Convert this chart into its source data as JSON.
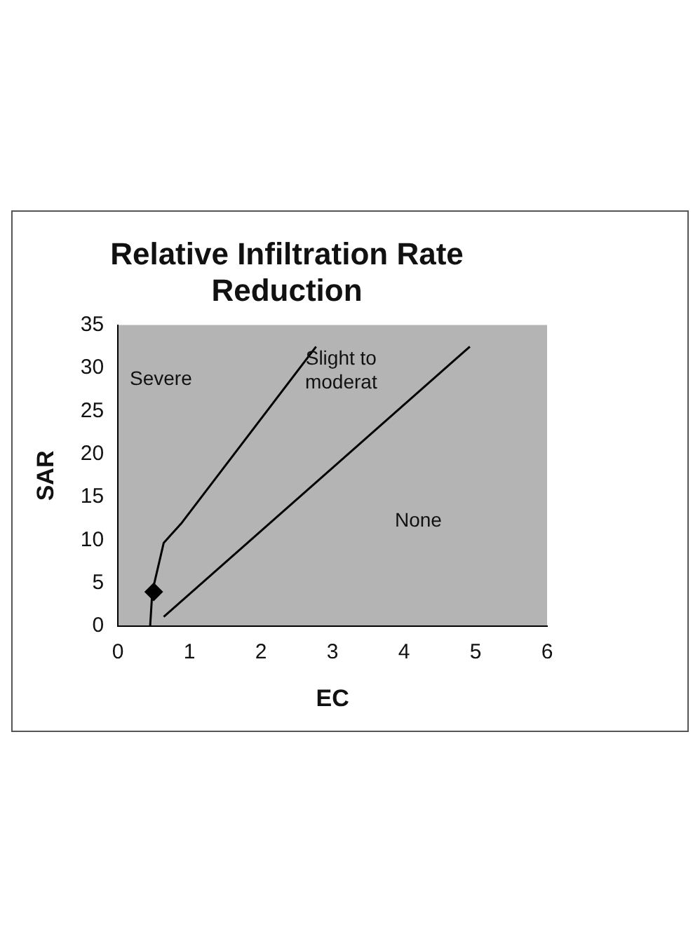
{
  "chart_data": {
    "type": "line",
    "title": "Relative Infiltration Rate Reduction",
    "xlabel": "EC",
    "ylabel": "SAR",
    "xlim": [
      0,
      6
    ],
    "xticks": [
      0,
      1,
      2,
      3,
      4,
      5,
      6
    ],
    "ylim": [
      0,
      35
    ],
    "yticks": [
      0,
      5,
      10,
      15,
      20,
      25,
      30,
      35
    ],
    "grid": false,
    "legend": false,
    "marker": "none",
    "line_style": "solid",
    "series": [
      {
        "color": "#000000",
        "x": [
          0.45,
          0.48,
          0.64,
          0.89,
          2.77
        ],
        "values": [
          0,
          4,
          9.7,
          12,
          32.5
        ]
      },
      {
        "color": "#000000",
        "x": [
          0.64,
          4.92
        ],
        "values": [
          1.1,
          32.5
        ]
      },
      {
        "type": "scatter",
        "marker": "diamond",
        "color": "#000000",
        "x": [
          0.5
        ],
        "values": [
          4
        ]
      }
    ],
    "annotations": [
      "Severe",
      "Slight to moderat",
      "None"
    ]
  }
}
